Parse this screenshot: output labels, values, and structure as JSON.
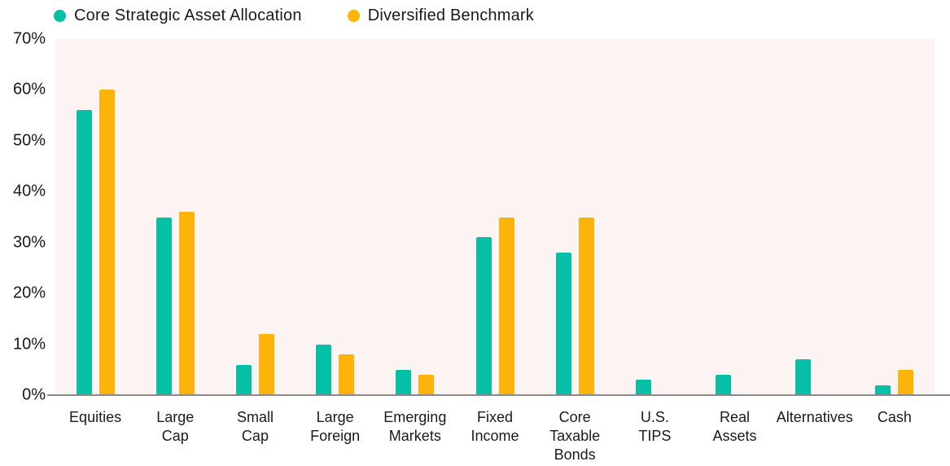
{
  "legend": {
    "items": [
      {
        "label": "Core Strategic Asset Allocation",
        "color": "#05BFA6"
      },
      {
        "label": "Diversified Benchmark",
        "color": "#FCB40A"
      }
    ]
  },
  "chart_data": {
    "type": "bar",
    "title": "",
    "xlabel": "",
    "ylabel": "",
    "categories": [
      "Equities",
      "Large Cap",
      "Small Cap",
      "Large Foreign",
      "Emerging Markets",
      "Fixed Income",
      "Core Taxable Bonds",
      "U.S. TIPS",
      "Real Assets",
      "Alternatives",
      "Cash"
    ],
    "category_label_lines": [
      [
        "Equities"
      ],
      [
        "Large",
        "Cap"
      ],
      [
        "Small",
        "Cap"
      ],
      [
        "Large",
        "Foreign"
      ],
      [
        "Emerging",
        "Markets"
      ],
      [
        "Fixed",
        "Income"
      ],
      [
        "Core",
        "Taxable",
        "Bonds"
      ],
      [
        "U.S.",
        "TIPS"
      ],
      [
        "Real",
        "Assets"
      ],
      [
        "Alternatives"
      ],
      [
        "Cash"
      ]
    ],
    "series": [
      {
        "name": "Core Strategic Asset Allocation",
        "color": "#05BFA6",
        "values": [
          56,
          35,
          6,
          10,
          5,
          31,
          28,
          3,
          4,
          7,
          2
        ]
      },
      {
        "name": "Diversified Benchmark",
        "color": "#FCB40A",
        "values": [
          60,
          36,
          12,
          8,
          4,
          35,
          35,
          0,
          0,
          0,
          5
        ]
      }
    ],
    "ylim": [
      0,
      70
    ],
    "ytick_labels": [
      "0%",
      "10%",
      "20%",
      "30%",
      "40%",
      "50%",
      "60%",
      "70%"
    ],
    "grid": false,
    "legend_position": "top-left",
    "plot_bg_color": "#FBF4F2",
    "axis_line_color": "#8A8A8A",
    "text_color": "#1A1A1A"
  }
}
